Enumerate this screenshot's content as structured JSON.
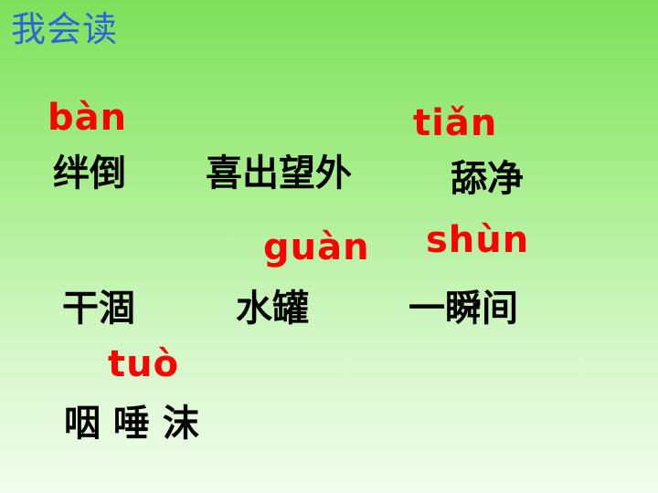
{
  "title": "我会读",
  "pinyin": {
    "ban": "bàn",
    "tian": "tiǎn",
    "guan": "guàn",
    "shun": "shùn",
    "tuo": "tuò"
  },
  "words": {
    "bandao": "绊倒",
    "xichuwangwai": "喜出望外",
    "tianjing": "舔净",
    "gankao": "干涸",
    "shuiguan": "水罐",
    "yishunjian": "一瞬间",
    "yanshuimo": "咽 唾 沫"
  },
  "colors": {
    "title": "#2b63e0",
    "pinyin": "#ff0000",
    "text": "#000000",
    "background_top": "#7ee05a",
    "background_bottom": "#f2fdee"
  }
}
